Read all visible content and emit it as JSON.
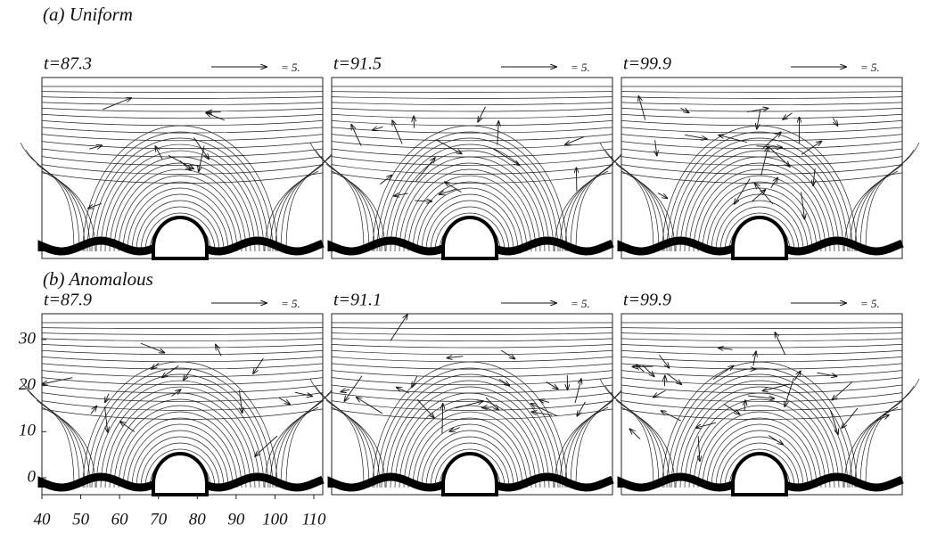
{
  "row_a": {
    "title": "(a) Uniform",
    "panels": [
      {
        "time": "t=87.3",
        "scale": "= 5."
      },
      {
        "time": "t=91.5",
        "scale": "= 5."
      },
      {
        "time": "t=99.9",
        "scale": "= 5."
      }
    ]
  },
  "row_b": {
    "title": "(b) Anomalous",
    "panels": [
      {
        "time": "t=87.9",
        "scale": "= 5."
      },
      {
        "time": "t=91.1",
        "scale": "= 5."
      },
      {
        "time": "t=99.9",
        "scale": "= 5."
      }
    ]
  },
  "axes": {
    "yticks": [
      0,
      10,
      20,
      30
    ],
    "xticks": [
      40,
      50,
      60,
      70,
      80,
      90,
      100,
      110
    ]
  }
}
